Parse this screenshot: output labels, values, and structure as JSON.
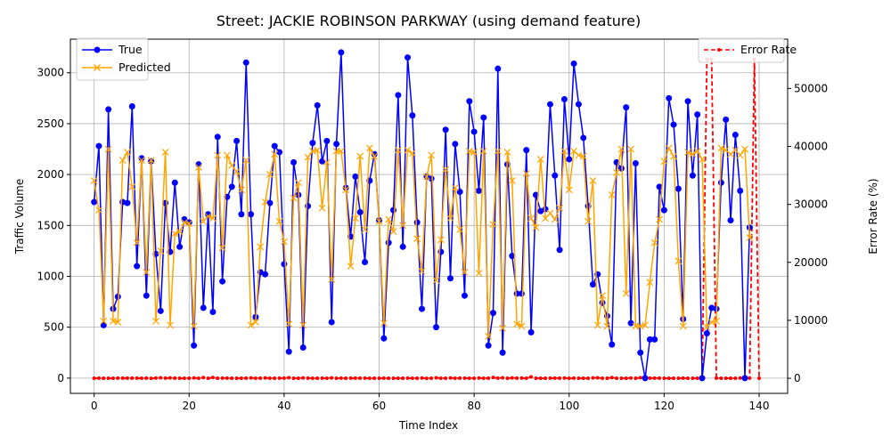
{
  "chart_data": {
    "type": "line",
    "title": "Street: JACKIE ROBINSON PARKWAY (using demand feature)",
    "xlabel": "Time Index",
    "ylabel": "Traffic Volume",
    "y2label": "Error Rate (%)",
    "xlim": [
      -5,
      146
    ],
    "ylim": [
      -150,
      3330
    ],
    "y2lim": [
      -2600,
      58500
    ],
    "x_ticks": [
      0,
      20,
      40,
      60,
      80,
      100,
      120,
      140
    ],
    "y_ticks": [
      0,
      500,
      1000,
      1500,
      2000,
      2500,
      3000
    ],
    "y2_ticks": [
      0,
      10000,
      20000,
      30000,
      40000,
      50000
    ],
    "grid": true,
    "legend_left": [
      "True",
      "Predicted"
    ],
    "legend_right": [
      "Error Rate"
    ],
    "colors": {
      "true": "#0000ff",
      "predicted": "#ffa500",
      "error": "#ff0000"
    },
    "series": [
      {
        "name": "True",
        "axis": "left",
        "values": [
          1730,
          2280,
          520,
          2640,
          680,
          800,
          1730,
          1720,
          2670,
          1100,
          2160,
          810,
          2130,
          1220,
          660,
          1720,
          1240,
          1920,
          1290,
          1560,
          1530,
          320,
          2100,
          690,
          1610,
          650,
          2370,
          950,
          1780,
          1880,
          2330,
          1610,
          3100,
          1610,
          600,
          1040,
          1020,
          1720,
          2280,
          2220,
          1120,
          260,
          2120,
          1800,
          300,
          1690,
          2310,
          2680,
          2130,
          2330,
          550,
          2300,
          3200,
          1870,
          1390,
          1980,
          1630,
          1140,
          1940,
          2200,
          1550,
          390,
          1330,
          1650,
          2780,
          1290,
          3150,
          2580,
          1530,
          680,
          1980,
          1960,
          500,
          1240,
          2440,
          980,
          2300,
          1830,
          810,
          2720,
          2420,
          1840,
          2560,
          320,
          640,
          3040,
          250,
          2100,
          1200,
          830,
          830,
          2240,
          450,
          1800,
          1640,
          1660,
          2690,
          1990,
          1260,
          2740,
          2150,
          3090,
          2690,
          2360,
          1690,
          920,
          1020,
          740,
          610,
          330,
          2120,
          2060,
          2660,
          540,
          2110,
          250,
          0,
          380,
          380,
          1880,
          1650,
          2750,
          2490,
          1860,
          580,
          2720,
          1990,
          2590,
          0,
          440,
          690,
          680,
          1920,
          2540,
          1550,
          2390,
          1840,
          0,
          1480
        ]
      },
      {
        "name": "Predicted",
        "axis": "left",
        "values": [
          1940,
          1650,
          560,
          2250,
          560,
          550,
          2140,
          2220,
          1880,
          1330,
          2140,
          1040,
          2140,
          560,
          1250,
          2220,
          520,
          1420,
          1440,
          1530,
          1520,
          510,
          2070,
          1540,
          1590,
          1570,
          2190,
          1280,
          2190,
          2090,
          2030,
          1850,
          2140,
          520,
          550,
          1290,
          1730,
          2000,
          2200,
          1540,
          1340,
          530,
          1770,
          1920,
          520,
          2170,
          2230,
          2240,
          1670,
          2120,
          970,
          2230,
          2230,
          1850,
          1100,
          1570,
          2180,
          1460,
          2260,
          2180,
          1540,
          540,
          1560,
          1440,
          2240,
          1500,
          2240,
          2210,
          1370,
          1050,
          1980,
          2190,
          960,
          1360,
          2050,
          1570,
          1870,
          1460,
          1040,
          2230,
          2220,
          1030,
          2230,
          410,
          1510,
          2230,
          490,
          2220,
          1940,
          530,
          510,
          2010,
          1570,
          1480,
          2150,
          1570,
          1620,
          1560,
          1670,
          2230,
          1850,
          2230,
          2190,
          2180,
          1540,
          1940,
          520,
          810,
          510,
          1800,
          2020,
          2250,
          830,
          2250,
          510,
          510,
          520,
          940,
          1330,
          1560,
          2130,
          2260,
          2180,
          1150,
          510,
          2220,
          2200,
          2230,
          2150,
          500,
          550,
          560,
          2260,
          2240,
          2200,
          2240,
          2190,
          2250,
          1380
        ]
      },
      {
        "name": "Error Rate",
        "axis": "right",
        "values": [
          12,
          30,
          8,
          15,
          18,
          31,
          24,
          29,
          30,
          20,
          1,
          30,
          0,
          54,
          89,
          29,
          58,
          26,
          12,
          2,
          1,
          59,
          1,
          123,
          1,
          142,
          8,
          35,
          23,
          11,
          13,
          15,
          31,
          68,
          8,
          24,
          70,
          16,
          3,
          31,
          20,
          104,
          17,
          7,
          73,
          28,
          4,
          16,
          22,
          9,
          76,
          3,
          30,
          1,
          21,
          21,
          34,
          28,
          16,
          1,
          1,
          38,
          17,
          13,
          19,
          16,
          29,
          14,
          10,
          54,
          0,
          12,
          92,
          10,
          16,
          60,
          19,
          20,
          28,
          18,
          8,
          44,
          13,
          28,
          136,
          27,
          96,
          6,
          62,
          36,
          39,
          10,
          248,
          18,
          4,
          3,
          20,
          21,
          29,
          43,
          4,
          28,
          17,
          8,
          9,
          67,
          90,
          9,
          16,
          121,
          15,
          9,
          15,
          54,
          7,
          104,
          150,
          36,
          36,
          29,
          19,
          18,
          12,
          16,
          38,
          12,
          10,
          15,
          11,
          55000,
          55000,
          25,
          19,
          18,
          17,
          12,
          42,
          7,
          22,
          55000,
          7
        ]
      }
    ]
  }
}
